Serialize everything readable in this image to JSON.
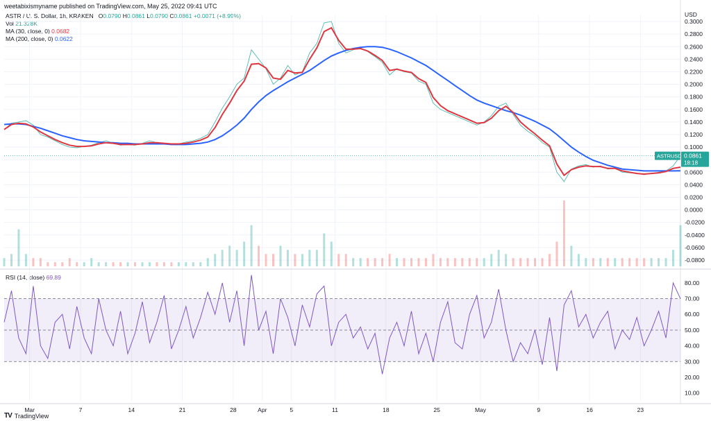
{
  "header": {
    "text": "weetabixismyname published on TradingView.com, May 25, 2022 09:41 UTC"
  },
  "legend": {
    "symbol": "ASTR / U. S. Dollar, 1h, KRAKEN",
    "ohlc_labels": [
      "O",
      "H",
      "L",
      "C"
    ],
    "ohlc_values": [
      "0.0790",
      "0.0861",
      "0.0790",
      "0.0861"
    ],
    "change": "+0.0071 (+8.99%)",
    "vol_label": "Vol",
    "vol_value": "21.328K",
    "ma30_label": "MA (30, close, 0)",
    "ma30_value": "0.0682",
    "ma200_label": "MA (200, close, 0)",
    "ma200_value": "0.0622"
  },
  "rsi_legend": {
    "label": "RSI (14, close)",
    "value": "69.89"
  },
  "price_badge": {
    "symbol": "ASTRUSD",
    "price": "0.0861",
    "countdown": "18:18"
  },
  "axis_currency": "USD",
  "footer": {
    "brand": "TradingView"
  },
  "colors": {
    "ma30": "#e0363f",
    "ma200": "#2962ff",
    "rsi": "#7e57c2",
    "badge": "#26a69a",
    "up": "#26a69a",
    "down": "#ef5350"
  },
  "chart_data": [
    {
      "type": "line",
      "name": "price",
      "ylim": [
        -0.09,
        0.31
      ],
      "y_ticks": [
        "0.3000",
        "0.2800",
        "0.2600",
        "0.2400",
        "0.2200",
        "0.2000",
        "0.1800",
        "0.1600",
        "0.1400",
        "0.1200",
        "0.1000",
        "0.0800",
        "0.0600",
        "0.0400",
        "0.0200",
        "0.0000",
        "-0.0200",
        "-0.0400",
        "-0.0600",
        "-0.0800"
      ],
      "x_ticks": [
        "Mar",
        "7",
        "14",
        "21",
        "28",
        "Apr",
        "5",
        "11",
        "18",
        "25",
        "May",
        "9",
        "16",
        "23"
      ],
      "x_tick_index": [
        3.5,
        10.5,
        17.5,
        24.5,
        31.5,
        35.5,
        39.5,
        45.5,
        52.5,
        59.5,
        65.5,
        73.5,
        80.5,
        87.5
      ],
      "price": [
        0.128,
        0.138,
        0.14,
        0.142,
        0.135,
        0.12,
        0.116,
        0.11,
        0.104,
        0.1,
        0.099,
        0.101,
        0.103,
        0.107,
        0.11,
        0.106,
        0.103,
        0.104,
        0.103,
        0.106,
        0.11,
        0.107,
        0.105,
        0.104,
        0.105,
        0.108,
        0.11,
        0.114,
        0.12,
        0.14,
        0.162,
        0.18,
        0.2,
        0.21,
        0.255,
        0.24,
        0.225,
        0.2,
        0.21,
        0.23,
        0.215,
        0.22,
        0.25,
        0.265,
        0.298,
        0.3,
        0.265,
        0.25,
        0.255,
        0.258,
        0.252,
        0.244,
        0.235,
        0.215,
        0.225,
        0.22,
        0.218,
        0.205,
        0.2,
        0.17,
        0.16,
        0.155,
        0.15,
        0.145,
        0.14,
        0.135,
        0.14,
        0.15,
        0.165,
        0.17,
        0.152,
        0.135,
        0.125,
        0.118,
        0.107,
        0.1,
        0.06,
        0.045,
        0.065,
        0.07,
        0.072,
        0.068,
        0.07,
        0.065,
        0.066,
        0.06,
        0.059,
        0.058,
        0.056,
        0.058,
        0.06,
        0.062,
        0.07,
        0.0861
      ],
      "ma30": [
        0.128,
        0.136,
        0.138,
        0.137,
        0.132,
        0.124,
        0.118,
        0.112,
        0.107,
        0.103,
        0.101,
        0.101,
        0.102,
        0.105,
        0.107,
        0.106,
        0.104,
        0.104,
        0.104,
        0.105,
        0.107,
        0.107,
        0.106,
        0.105,
        0.105,
        0.106,
        0.108,
        0.111,
        0.116,
        0.131,
        0.152,
        0.17,
        0.19,
        0.205,
        0.232,
        0.233,
        0.226,
        0.21,
        0.208,
        0.222,
        0.218,
        0.219,
        0.24,
        0.258,
        0.284,
        0.29,
        0.27,
        0.256,
        0.256,
        0.257,
        0.253,
        0.246,
        0.238,
        0.222,
        0.224,
        0.221,
        0.219,
        0.209,
        0.203,
        0.179,
        0.166,
        0.158,
        0.153,
        0.148,
        0.143,
        0.138,
        0.139,
        0.146,
        0.158,
        0.165,
        0.155,
        0.14,
        0.13,
        0.121,
        0.111,
        0.102,
        0.073,
        0.055,
        0.064,
        0.068,
        0.07,
        0.069,
        0.069,
        0.066,
        0.066,
        0.062,
        0.06,
        0.058,
        0.057,
        0.058,
        0.059,
        0.061,
        0.066,
        0.068
      ],
      "ma200": [
        0.136,
        0.137,
        0.137,
        0.136,
        0.133,
        0.13,
        0.126,
        0.122,
        0.118,
        0.115,
        0.112,
        0.11,
        0.109,
        0.108,
        0.107,
        0.107,
        0.106,
        0.106,
        0.105,
        0.105,
        0.105,
        0.105,
        0.105,
        0.104,
        0.104,
        0.104,
        0.105,
        0.106,
        0.108,
        0.112,
        0.118,
        0.126,
        0.135,
        0.146,
        0.16,
        0.172,
        0.182,
        0.19,
        0.197,
        0.204,
        0.21,
        0.216,
        0.222,
        0.23,
        0.238,
        0.245,
        0.25,
        0.254,
        0.257,
        0.259,
        0.26,
        0.26,
        0.259,
        0.256,
        0.252,
        0.247,
        0.242,
        0.236,
        0.23,
        0.222,
        0.214,
        0.206,
        0.198,
        0.19,
        0.182,
        0.175,
        0.17,
        0.166,
        0.162,
        0.158,
        0.155,
        0.151,
        0.146,
        0.141,
        0.135,
        0.129,
        0.12,
        0.11,
        0.1,
        0.092,
        0.085,
        0.079,
        0.075,
        0.071,
        0.068,
        0.065,
        0.064,
        0.063,
        0.062,
        0.062,
        0.062,
        0.062,
        0.062,
        0.0622
      ],
      "volume": [
        0.2,
        0.3,
        0.9,
        0.3,
        0.2,
        0.2,
        0.1,
        0.1,
        0.1,
        0.2,
        0.1,
        0.1,
        0.2,
        0.1,
        0.1,
        0.1,
        0.1,
        0.1,
        0.1,
        0.1,
        0.1,
        0.1,
        0.1,
        0.1,
        0.1,
        0.1,
        0.1,
        0.1,
        0.2,
        0.3,
        0.4,
        0.5,
        0.4,
        0.6,
        1.0,
        0.5,
        0.3,
        0.3,
        0.5,
        0.4,
        0.3,
        0.3,
        0.4,
        0.4,
        0.8,
        0.6,
        0.3,
        0.3,
        0.2,
        0.2,
        0.2,
        0.2,
        0.2,
        0.3,
        0.2,
        0.2,
        0.2,
        0.2,
        0.2,
        0.3,
        0.2,
        0.2,
        0.2,
        0.2,
        0.2,
        0.2,
        0.2,
        0.3,
        0.4,
        0.3,
        0.2,
        0.2,
        0.2,
        0.2,
        0.2,
        0.3,
        0.6,
        1.6,
        0.5,
        0.3,
        0.2,
        0.2,
        0.2,
        0.2,
        0.2,
        0.2,
        0.2,
        0.2,
        0.2,
        0.2,
        0.2,
        0.2,
        0.4,
        1.0
      ]
    },
    {
      "type": "line",
      "name": "rsi",
      "ylim": [
        5,
        87
      ],
      "y_ticks": [
        "80.00",
        "70.00",
        "60.00",
        "50.00",
        "40.00",
        "30.00",
        "20.00",
        "10.00"
      ],
      "band": [
        30,
        70
      ],
      "rsi": [
        55,
        75,
        45,
        35,
        78,
        40,
        32,
        55,
        60,
        38,
        65,
        45,
        35,
        70,
        50,
        40,
        62,
        35,
        48,
        68,
        42,
        55,
        72,
        38,
        50,
        65,
        45,
        58,
        74,
        60,
        80,
        55,
        75,
        40,
        85,
        50,
        62,
        35,
        70,
        58,
        40,
        66,
        52,
        73,
        78,
        40,
        55,
        60,
        45,
        52,
        38,
        48,
        22,
        45,
        55,
        40,
        62,
        35,
        48,
        30,
        55,
        68,
        42,
        38,
        60,
        72,
        45,
        55,
        76,
        50,
        30,
        42,
        35,
        50,
        28,
        58,
        24,
        66,
        75,
        52,
        60,
        45,
        55,
        62,
        38,
        50,
        44,
        58,
        40,
        50,
        62,
        45,
        80,
        69.89
      ]
    }
  ]
}
